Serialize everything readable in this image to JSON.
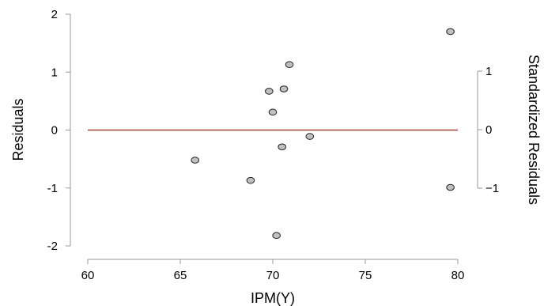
{
  "chart_data": {
    "type": "scatter",
    "xlabel": "IPM(Y)",
    "ylabel": "Residuals",
    "y2label": "Standardized Residuals",
    "xlim": [
      60,
      80
    ],
    "ylim": [
      -2,
      2
    ],
    "y2lim": [
      -1,
      1
    ],
    "xticks": [
      60,
      65,
      70,
      75,
      80
    ],
    "yticks": [
      -2,
      -1,
      0,
      1,
      2
    ],
    "y2ticks": [
      -1,
      0,
      1
    ],
    "points": [
      {
        "x": 65.8,
        "y": -0.52
      },
      {
        "x": 68.8,
        "y": -0.87
      },
      {
        "x": 69.8,
        "y": 0.67
      },
      {
        "x": 70.0,
        "y": 0.31
      },
      {
        "x": 70.2,
        "y": -1.82
      },
      {
        "x": 70.5,
        "y": -0.29
      },
      {
        "x": 70.6,
        "y": 0.71
      },
      {
        "x": 70.9,
        "y": 1.13
      },
      {
        "x": 72.0,
        "y": -0.11
      },
      {
        "x": 79.6,
        "y": 1.7
      },
      {
        "x": 79.6,
        "y": -0.99
      }
    ],
    "reference_line": {
      "y": 0,
      "x_from": 60,
      "x_to": 80
    },
    "grid": false,
    "colors": {
      "point_fill": "#c0c0c0",
      "point_stroke": "#222222",
      "reference_line": "#a0443c",
      "axis": "#9a9a9a"
    }
  }
}
